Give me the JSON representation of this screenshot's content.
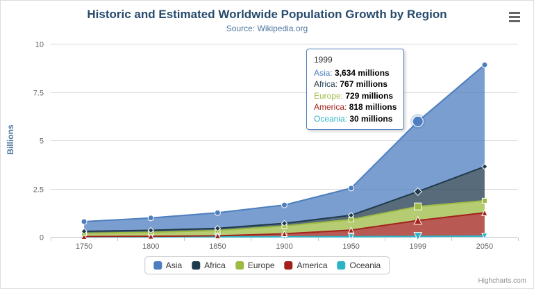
{
  "chart_data": {
    "type": "area",
    "stacking": "normal",
    "title": "Historic and Estimated Worldwide Population Growth by Region",
    "subtitle": "Source: Wikipedia.org",
    "xlabel": "",
    "ylabel": "Billions",
    "categories": [
      "1750",
      "1800",
      "1850",
      "1900",
      "1950",
      "1999",
      "2050"
    ],
    "y_ticks": [
      "0",
      "2.5",
      "5",
      "7.5",
      "10"
    ],
    "ylim_billions": [
      0,
      10
    ],
    "values_unit": "millions",
    "grid": "horizontal",
    "legend_position": "bottom-center",
    "stack_order_bottom_to_top": [
      "Oceania",
      "America",
      "Europe",
      "Africa",
      "Asia"
    ],
    "series": [
      {
        "name": "Asia",
        "color": "#4D7EBF",
        "marker": "circle",
        "values": [
          502,
          635,
          809,
          947,
          1402,
          3634,
          5268
        ]
      },
      {
        "name": "Africa",
        "color": "#1F3A4D",
        "marker": "diamond",
        "values": [
          106,
          107,
          111,
          133,
          221,
          767,
          1766
        ]
      },
      {
        "name": "Europe",
        "color": "#9DBB44",
        "marker": "square",
        "values": [
          163,
          203,
          276,
          408,
          547,
          729,
          628
        ]
      },
      {
        "name": "America",
        "color": "#A2221B",
        "marker": "triangle-up",
        "values": [
          18,
          31,
          54,
          156,
          339,
          818,
          1201
        ]
      },
      {
        "name": "Oceania",
        "color": "#2DB3C6",
        "marker": "triangle-down",
        "values": [
          2,
          2,
          2,
          6,
          13,
          30,
          46
        ]
      }
    ],
    "hover": {
      "category": "1999",
      "x_index": 5,
      "series": "Asia"
    }
  },
  "tooltip": {
    "header": "1999",
    "rows": [
      {
        "name": "Asia",
        "value": "3,634 millions"
      },
      {
        "name": "Africa",
        "value": "767 millions"
      },
      {
        "name": "Europe",
        "value": "729 millions"
      },
      {
        "name": "America",
        "value": "818 millions"
      },
      {
        "name": "Oceania",
        "value": "30 millions"
      }
    ]
  },
  "credits": "Highcharts.com",
  "icons": {
    "context_menu": "hamburger"
  }
}
